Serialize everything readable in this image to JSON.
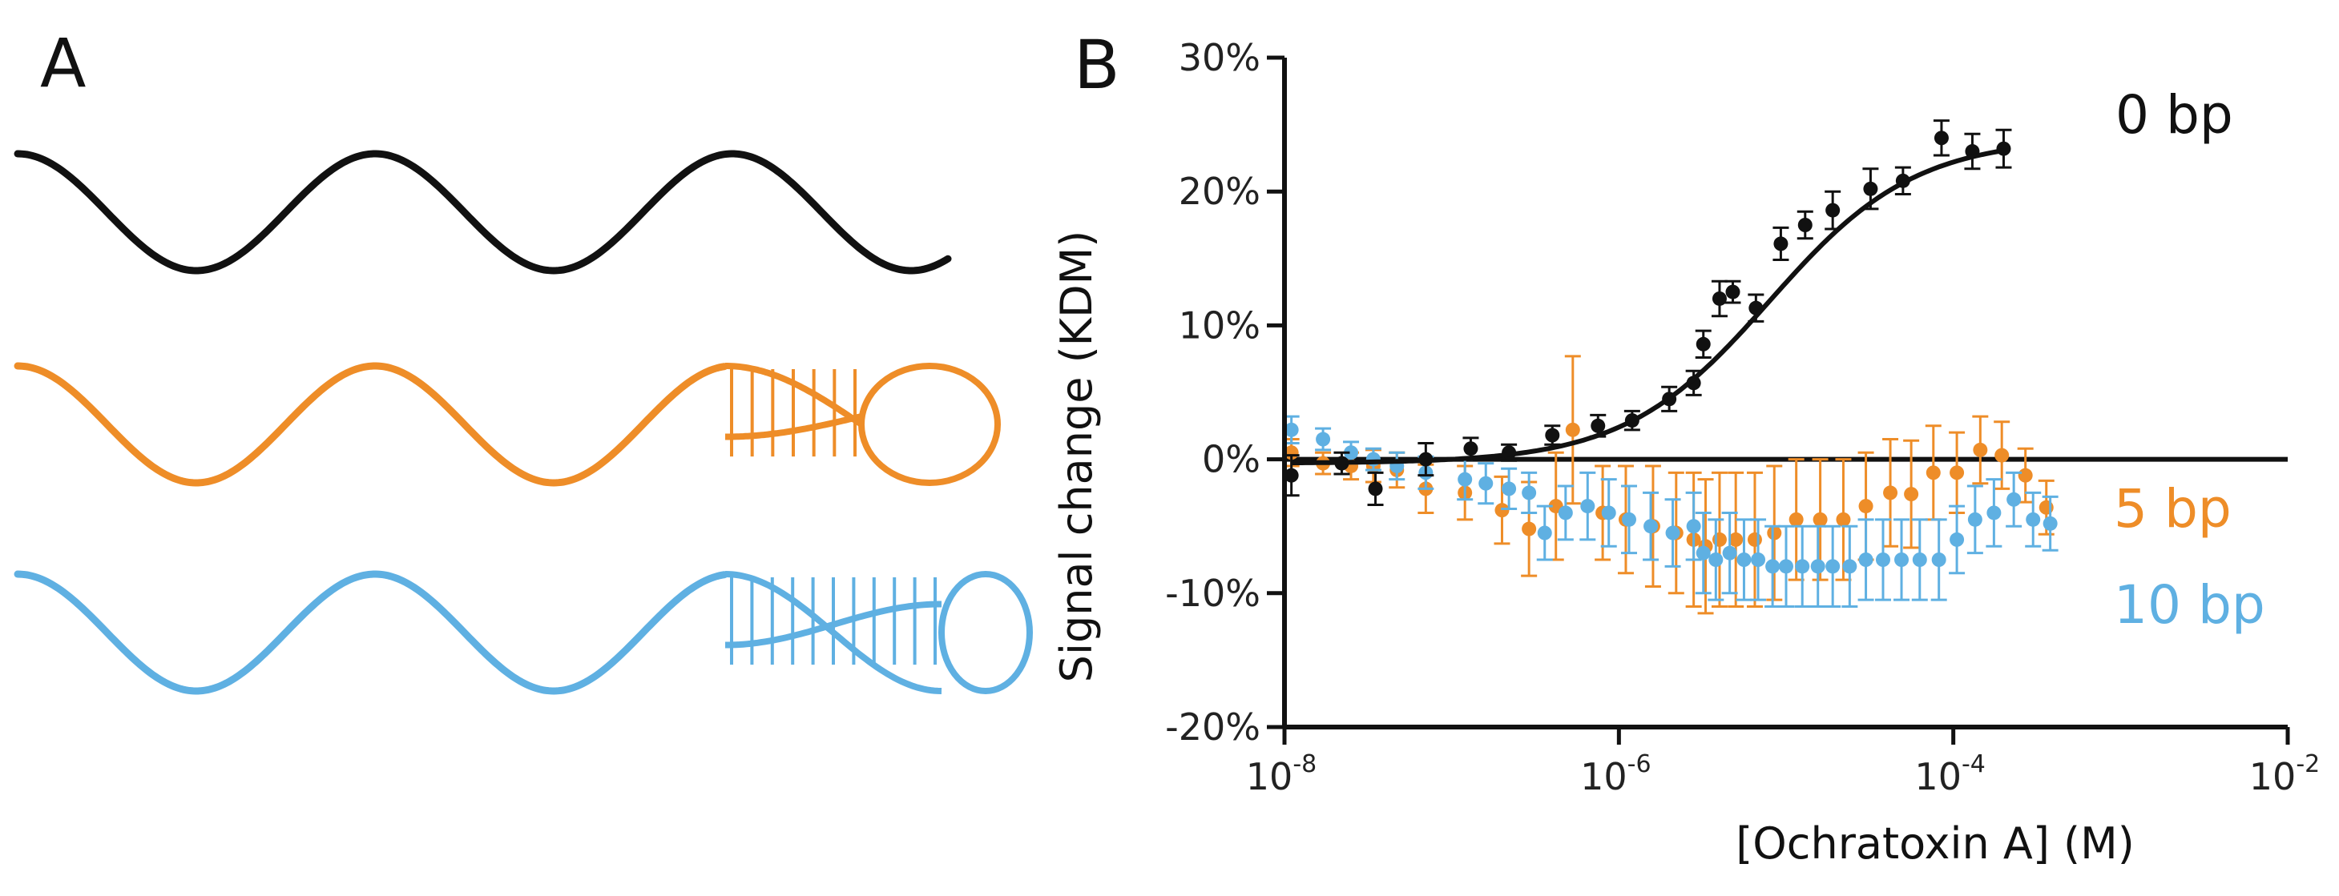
{
  "panels": {
    "a_label": "A",
    "b_label": "B"
  },
  "colors": {
    "zero_bp": "#111111",
    "five_bp": "#EE8D28",
    "ten_bp": "#5FB0E2"
  },
  "schematic": {
    "rows": [
      {
        "name": "0 bp",
        "color": "#111111",
        "helix": "none"
      },
      {
        "name": "5 bp",
        "color": "#EE8D28",
        "helix": "short"
      },
      {
        "name": "10 bp",
        "color": "#5FB0E2",
        "helix": "long"
      }
    ]
  },
  "chart_data": {
    "type": "scatter",
    "title": "",
    "xlabel": "[Ochratoxin A] (M)",
    "ylabel": "Signal change (KDM)",
    "xscale": "log",
    "xlim": [
      1e-08,
      0.01
    ],
    "ylim": [
      -20,
      30
    ],
    "x_ticks": [
      {
        "base": "10",
        "exp": "-8",
        "value": 1e-08
      },
      {
        "base": "10",
        "exp": "-6",
        "value": 1e-06
      },
      {
        "base": "10",
        "exp": "-4",
        "value": 0.0001
      },
      {
        "base": "10",
        "exp": "-2",
        "value": 0.01
      }
    ],
    "y_ticks": [
      {
        "label": "30%",
        "value": 30
      },
      {
        "label": "20%",
        "value": 20
      },
      {
        "label": "10%",
        "value": 10
      },
      {
        "label": "0%",
        "value": 0
      },
      {
        "label": "-10%",
        "value": -10
      },
      {
        "label": "-20%",
        "value": -20
      }
    ],
    "zero_line": 0,
    "series": [
      {
        "name": "0 bp",
        "color": "#111111",
        "marker": "circle",
        "fit": {
          "type": "hill",
          "bottom": -0.3,
          "top": 24,
          "ec50": 8e-06,
          "n": 1
        },
        "points": [
          {
            "x": 1.1e-08,
            "y": -1.2,
            "err": 1.5
          },
          {
            "x": 2.2e-08,
            "y": -0.3,
            "err": 0.8
          },
          {
            "x": 3.5e-08,
            "y": -2.2,
            "err": 1.2
          },
          {
            "x": 7e-08,
            "y": 0.0,
            "err": 1.2
          },
          {
            "x": 1.3e-07,
            "y": 0.8,
            "err": 0.8
          },
          {
            "x": 2.2e-07,
            "y": 0.5,
            "err": 0.6
          },
          {
            "x": 4e-07,
            "y": 1.8,
            "err": 0.7
          },
          {
            "x": 7.5e-07,
            "y": 2.5,
            "err": 0.8
          },
          {
            "x": 1.2e-06,
            "y": 2.9,
            "err": 0.7
          },
          {
            "x": 2e-06,
            "y": 4.5,
            "err": 0.9
          },
          {
            "x": 2.8e-06,
            "y": 5.7,
            "err": 0.9
          },
          {
            "x": 3.2e-06,
            "y": 8.6,
            "err": 1.0
          },
          {
            "x": 4e-06,
            "y": 12.0,
            "err": 1.3
          },
          {
            "x": 4.8e-06,
            "y": 12.5,
            "err": 0.8
          },
          {
            "x": 6.6e-06,
            "y": 11.3,
            "err": 1.0
          },
          {
            "x": 9.3e-06,
            "y": 16.1,
            "err": 1.2
          },
          {
            "x": 1.3e-05,
            "y": 17.5,
            "err": 1.0
          },
          {
            "x": 1.9e-05,
            "y": 18.6,
            "err": 1.4
          },
          {
            "x": 3.2e-05,
            "y": 20.2,
            "err": 1.5
          },
          {
            "x": 5e-05,
            "y": 20.8,
            "err": 1.0
          },
          {
            "x": 8.5e-05,
            "y": 24.0,
            "err": 1.3
          },
          {
            "x": 0.00013,
            "y": 23.0,
            "err": 1.3
          },
          {
            "x": 0.0002,
            "y": 23.2,
            "err": 1.4
          }
        ]
      },
      {
        "name": "5 bp",
        "color": "#EE8D28",
        "marker": "circle",
        "points": [
          {
            "x": 1.1e-08,
            "y": 0.5,
            "err": 1.0
          },
          {
            "x": 1.7e-08,
            "y": -0.3,
            "err": 0.8
          },
          {
            "x": 2.5e-08,
            "y": -0.5,
            "err": 1.0
          },
          {
            "x": 3.4e-08,
            "y": -0.5,
            "err": 1.2
          },
          {
            "x": 4.7e-08,
            "y": -0.8,
            "err": 1.3
          },
          {
            "x": 7e-08,
            "y": -2.2,
            "err": 1.8
          },
          {
            "x": 1.2e-07,
            "y": -2.5,
            "err": 2.0
          },
          {
            "x": 2e-07,
            "y": -3.8,
            "err": 2.5
          },
          {
            "x": 2.9e-07,
            "y": -5.2,
            "err": 3.5
          },
          {
            "x": 4.2e-07,
            "y": -3.5,
            "err": 4.0
          },
          {
            "x": 5.3e-07,
            "y": 2.2,
            "err": 5.5
          },
          {
            "x": 8e-07,
            "y": -4.0,
            "err": 3.5
          },
          {
            "x": 1.1e-06,
            "y": -4.5,
            "err": 4.0
          },
          {
            "x": 1.6e-06,
            "y": -5.0,
            "err": 4.5
          },
          {
            "x": 2.2e-06,
            "y": -5.5,
            "err": 4.5
          },
          {
            "x": 2.8e-06,
            "y": -6.0,
            "err": 5.0
          },
          {
            "x": 3.3e-06,
            "y": -6.5,
            "err": 5.0
          },
          {
            "x": 4e-06,
            "y": -6.0,
            "err": 5.0
          },
          {
            "x": 5e-06,
            "y": -6.0,
            "err": 5.0
          },
          {
            "x": 6.5e-06,
            "y": -6.0,
            "err": 5.0
          },
          {
            "x": 8.5e-06,
            "y": -5.5,
            "err": 5.0
          },
          {
            "x": 1.15e-05,
            "y": -4.5,
            "err": 4.5
          },
          {
            "x": 1.6e-05,
            "y": -4.5,
            "err": 4.5
          },
          {
            "x": 2.2e-05,
            "y": -4.5,
            "err": 4.5
          },
          {
            "x": 3e-05,
            "y": -3.5,
            "err": 4.0
          },
          {
            "x": 4.2e-05,
            "y": -2.5,
            "err": 4.0
          },
          {
            "x": 5.6e-05,
            "y": -2.6,
            "err": 4.0
          },
          {
            "x": 7.6e-05,
            "y": -1.0,
            "err": 3.5
          },
          {
            "x": 0.000105,
            "y": -1.0,
            "err": 3.0
          },
          {
            "x": 0.000145,
            "y": 0.7,
            "err": 2.5
          },
          {
            "x": 0.000195,
            "y": 0.3,
            "err": 2.5
          },
          {
            "x": 0.00027,
            "y": -1.2,
            "err": 2.0
          },
          {
            "x": 0.00036,
            "y": -3.6,
            "err": 2.0
          }
        ]
      },
      {
        "name": "10 bp",
        "color": "#5FB0E2",
        "marker": "circle",
        "points": [
          {
            "x": 1.1e-08,
            "y": 2.2,
            "err": 1.0
          },
          {
            "x": 1.7e-08,
            "y": 1.5,
            "err": 0.8
          },
          {
            "x": 2.5e-08,
            "y": 0.5,
            "err": 0.8
          },
          {
            "x": 3.4e-08,
            "y": 0.0,
            "err": 0.8
          },
          {
            "x": 4.7e-08,
            "y": -0.5,
            "err": 1.0
          },
          {
            "x": 7e-08,
            "y": -1.0,
            "err": 1.2
          },
          {
            "x": 1.2e-07,
            "y": -1.5,
            "err": 1.5
          },
          {
            "x": 1.6e-07,
            "y": -1.8,
            "err": 1.5
          },
          {
            "x": 2.2e-07,
            "y": -2.2,
            "err": 1.5
          },
          {
            "x": 2.9e-07,
            "y": -2.5,
            "err": 1.5
          },
          {
            "x": 3.6e-07,
            "y": -5.5,
            "err": 2.0
          },
          {
            "x": 4.8e-07,
            "y": -4.0,
            "err": 2.0
          },
          {
            "x": 6.5e-07,
            "y": -3.5,
            "err": 2.5
          },
          {
            "x": 8.7e-07,
            "y": -4.0,
            "err": 2.5
          },
          {
            "x": 1.15e-06,
            "y": -4.5,
            "err": 2.5
          },
          {
            "x": 1.55e-06,
            "y": -5.0,
            "err": 2.5
          },
          {
            "x": 2.1e-06,
            "y": -5.5,
            "err": 2.5
          },
          {
            "x": 2.8e-06,
            "y": -5.0,
            "err": 2.5
          },
          {
            "x": 3.2e-06,
            "y": -7.0,
            "err": 3.0
          },
          {
            "x": 3.8e-06,
            "y": -7.5,
            "err": 3.0
          },
          {
            "x": 4.6e-06,
            "y": -7.0,
            "err": 3.0
          },
          {
            "x": 5.6e-06,
            "y": -7.5,
            "err": 3.0
          },
          {
            "x": 6.8e-06,
            "y": -7.5,
            "err": 3.0
          },
          {
            "x": 8.3e-06,
            "y": -8.0,
            "err": 3.0
          },
          {
            "x": 1e-05,
            "y": -8.0,
            "err": 3.0
          },
          {
            "x": 1.25e-05,
            "y": -8.0,
            "err": 3.0
          },
          {
            "x": 1.55e-05,
            "y": -8.0,
            "err": 3.0
          },
          {
            "x": 1.9e-05,
            "y": -8.0,
            "err": 3.0
          },
          {
            "x": 2.4e-05,
            "y": -8.0,
            "err": 3.0
          },
          {
            "x": 3e-05,
            "y": -7.5,
            "err": 3.0
          },
          {
            "x": 3.8e-05,
            "y": -7.5,
            "err": 3.0
          },
          {
            "x": 4.9e-05,
            "y": -7.5,
            "err": 3.0
          },
          {
            "x": 6.3e-05,
            "y": -7.5,
            "err": 3.0
          },
          {
            "x": 8.2e-05,
            "y": -7.5,
            "err": 3.0
          },
          {
            "x": 0.000105,
            "y": -6.0,
            "err": 2.5
          },
          {
            "x": 0.000135,
            "y": -4.5,
            "err": 2.5
          },
          {
            "x": 0.000175,
            "y": -4.0,
            "err": 2.5
          },
          {
            "x": 0.00023,
            "y": -3.0,
            "err": 2.0
          },
          {
            "x": 0.0003,
            "y": -4.5,
            "err": 2.0
          },
          {
            "x": 0.00038,
            "y": -4.8,
            "err": 2.0
          }
        ]
      }
    ]
  }
}
